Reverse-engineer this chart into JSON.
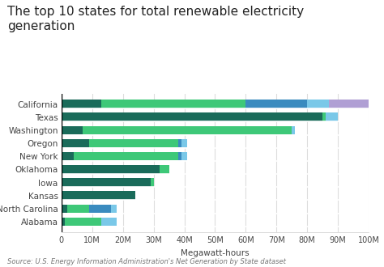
{
  "title": "The top 10 states for total renewable electricity\ngeneration",
  "states": [
    "California",
    "Texas",
    "Washington",
    "Oregon",
    "New York",
    "Oklahoma",
    "Iowa",
    "Kansas",
    "North Carolina",
    "Alabama"
  ],
  "wind": [
    13,
    85,
    7,
    9,
    4,
    32,
    29,
    24,
    2,
    1
  ],
  "hydro": [
    47,
    1,
    68,
    29,
    34,
    3,
    1,
    0,
    7,
    12
  ],
  "solar": [
    20,
    0,
    0,
    1,
    1,
    0,
    0,
    0,
    7,
    0
  ],
  "biomass": [
    7,
    4,
    1,
    2,
    2,
    0,
    0,
    0,
    2,
    5
  ],
  "geothermal": [
    14,
    0,
    0,
    0,
    0,
    0,
    0,
    0,
    0,
    0
  ],
  "colors": {
    "wind": "#1a6b5a",
    "hydro": "#3ec878",
    "solar": "#3a8bbf",
    "biomass": "#7ac8e8",
    "geothermal": "#b09fd4"
  },
  "xlabel": "Megawatt-hours",
  "source": "Source: U.S. Energy Information Administration's Net Generation by State dataset",
  "xlim": [
    0,
    100
  ],
  "xticks": [
    0,
    10,
    20,
    30,
    40,
    50,
    60,
    70,
    80,
    90,
    100
  ],
  "xticklabels": [
    "0",
    "10M",
    "20M",
    "30M",
    "40M",
    "50M",
    "60M",
    "70M",
    "80M",
    "90M",
    "100M"
  ],
  "bg_color": "#ffffff",
  "title_fontsize": 11,
  "axis_fontsize": 7,
  "ytick_fontsize": 7.5,
  "xlabel_fontsize": 7.5,
  "legend_fontsize": 7,
  "source_fontsize": 6,
  "bar_height": 0.65
}
